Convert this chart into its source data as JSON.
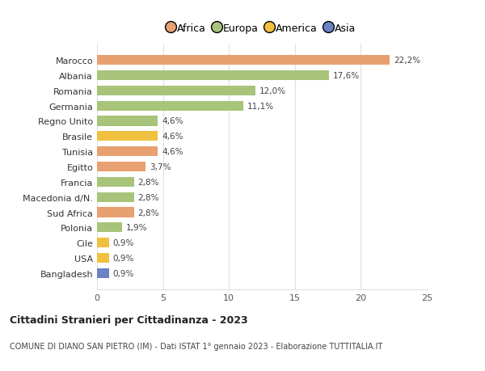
{
  "categories": [
    "Bangladesh",
    "USA",
    "Cile",
    "Polonia",
    "Sud Africa",
    "Macedonia d/N.",
    "Francia",
    "Egitto",
    "Tunisia",
    "Brasile",
    "Regno Unito",
    "Germania",
    "Romania",
    "Albania",
    "Marocco"
  ],
  "values": [
    0.9,
    0.9,
    0.9,
    1.9,
    2.8,
    2.8,
    2.8,
    3.7,
    4.6,
    4.6,
    4.6,
    11.1,
    12.0,
    17.6,
    22.2
  ],
  "colors": [
    "#6b82c4",
    "#f0c040",
    "#f0c040",
    "#a8c47a",
    "#e8a070",
    "#a8c47a",
    "#a8c47a",
    "#e8a070",
    "#e8a070",
    "#f0c040",
    "#a8c47a",
    "#a8c47a",
    "#a8c47a",
    "#a8c47a",
    "#e8a070"
  ],
  "labels": [
    "0,9%",
    "0,9%",
    "0,9%",
    "1,9%",
    "2,8%",
    "2,8%",
    "2,8%",
    "3,7%",
    "4,6%",
    "4,6%",
    "4,6%",
    "11,1%",
    "12,0%",
    "17,6%",
    "22,2%"
  ],
  "legend_labels": [
    "Africa",
    "Europa",
    "America",
    "Asia"
  ],
  "legend_colors": [
    "#e8a070",
    "#a8c47a",
    "#f0c040",
    "#6b82c4"
  ],
  "title": "Cittadini Stranieri per Cittadinanza - 2023",
  "subtitle": "COMUNE DI DIANO SAN PIETRO (IM) - Dati ISTAT 1° gennaio 2023 - Elaborazione TUTTITALIA.IT",
  "xlim": [
    0,
    25
  ],
  "xticks": [
    0,
    5,
    10,
    15,
    20,
    25
  ],
  "bg_color": "#ffffff",
  "grid_color": "#e0e0e0"
}
